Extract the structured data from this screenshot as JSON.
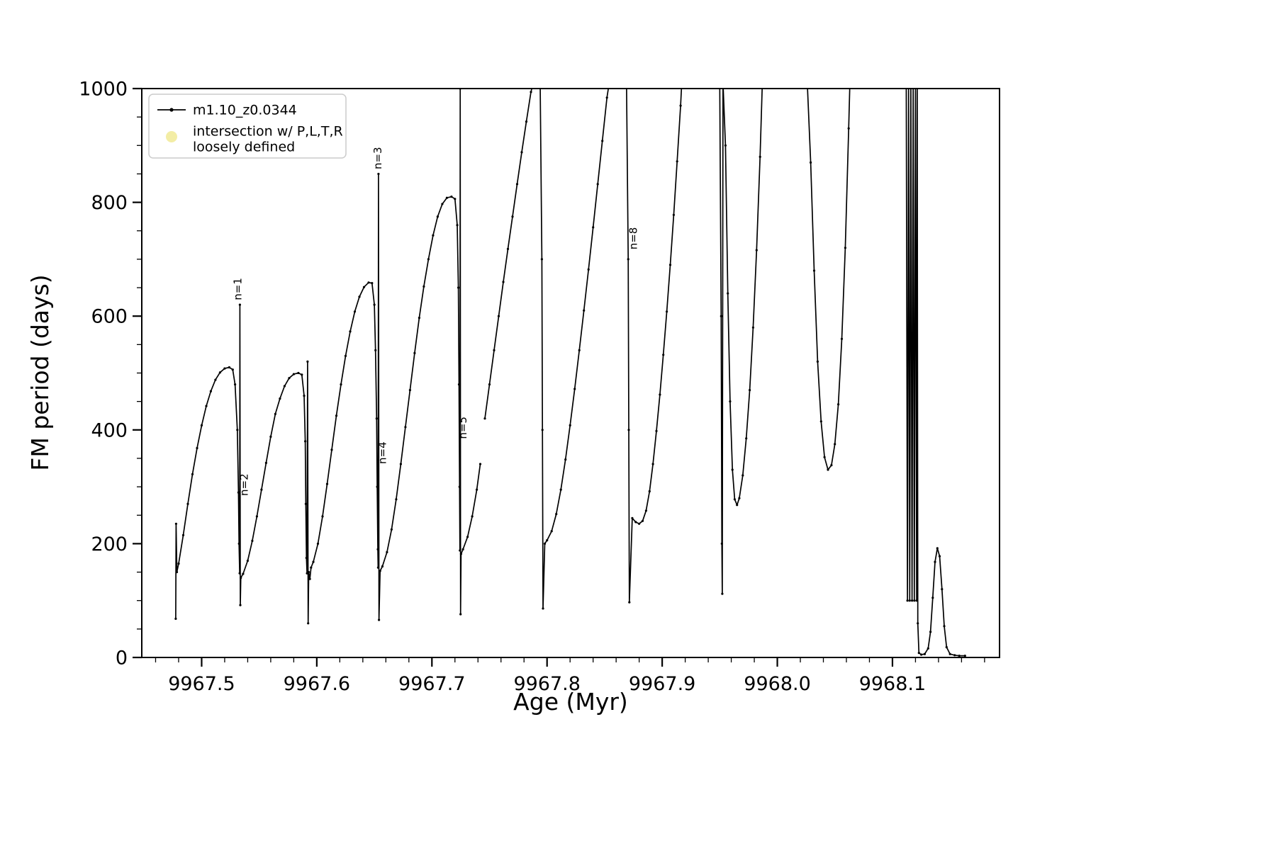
{
  "figure": {
    "background": "#ffffff"
  },
  "chart_data": {
    "type": "line",
    "title": "",
    "xlabel": "Age (Myr)",
    "ylabel": "FM period (days)",
    "xlim": [
      9967.448,
      9968.193
    ],
    "ylim": [
      0,
      1000
    ],
    "x_major_ticks": [
      9967.5,
      9967.6,
      9967.7,
      9967.8,
      9967.9,
      9968.0,
      9968.1
    ],
    "x_tick_labels": [
      "9967.5",
      "9967.6",
      "9967.7",
      "9967.8",
      "9967.9",
      "9968.0",
      "9968.1"
    ],
    "x_minor_step": 0.02,
    "y_major_ticks": [
      0,
      200,
      400,
      600,
      800,
      1000
    ],
    "y_tick_labels": [
      "0",
      "200",
      "400",
      "600",
      "800",
      "1000"
    ],
    "y_minor_step": 50,
    "grid": false,
    "axis_color": "#000000",
    "legend": {
      "position": "upper-left",
      "edge_color": "#cccccc",
      "items": [
        {
          "label_lines": [
            "m1.10_z0.0344"
          ],
          "marker": "line-dot",
          "color": "#000000"
        },
        {
          "label_lines": [
            "intersection w/ P,L,T,R",
            "loosely defined"
          ],
          "marker": "dot",
          "color": "#f3eda5"
        }
      ]
    },
    "annotations": [
      {
        "text": "n=1",
        "x": 9967.5345,
        "y": 628,
        "rotation": 90
      },
      {
        "text": "n=2",
        "x": 9967.54,
        "y": 284,
        "rotation": 90
      },
      {
        "text": "n=3",
        "x": 9967.656,
        "y": 858,
        "rotation": 90
      },
      {
        "text": "n=4",
        "x": 9967.66,
        "y": 340,
        "rotation": 90
      },
      {
        "text": "n=5",
        "x": 9967.73,
        "y": 384,
        "rotation": 90
      },
      {
        "text": "n=8",
        "x": 9967.878,
        "y": 717,
        "rotation": 90
      }
    ],
    "series": [
      {
        "name": "m1.10_z0.0344",
        "color": "#000000",
        "points": [
          [
            9967.4775,
            68
          ],
          [
            9967.4778,
            235
          ],
          [
            9967.4785,
            150
          ],
          [
            9967.48,
            165
          ],
          [
            9967.484,
            215
          ],
          [
            9967.488,
            270
          ],
          [
            9967.492,
            322
          ],
          [
            9967.496,
            368
          ],
          [
            9967.5,
            408
          ],
          [
            9967.504,
            442
          ],
          [
            9967.508,
            468
          ],
          [
            9967.512,
            488
          ],
          [
            9967.516,
            501
          ],
          [
            9967.52,
            508
          ],
          [
            9967.524,
            510
          ],
          [
            9967.527,
            506
          ],
          [
            9967.529,
            480
          ],
          [
            9967.531,
            400
          ],
          [
            9967.532,
            290
          ],
          [
            9967.5325,
            200
          ],
          [
            9967.533,
            148
          ],
          [
            9967.5332,
            620
          ],
          [
            9967.5336,
            92
          ],
          [
            9967.534,
            140
          ],
          [
            9967.536,
            147
          ],
          [
            9967.54,
            170
          ],
          [
            9967.544,
            205
          ],
          [
            9967.548,
            248
          ],
          [
            9967.552,
            295
          ],
          [
            9967.556,
            342
          ],
          [
            9967.56,
            388
          ],
          [
            9967.564,
            428
          ],
          [
            9967.568,
            455
          ],
          [
            9967.572,
            477
          ],
          [
            9967.576,
            491
          ],
          [
            9967.58,
            498
          ],
          [
            9967.584,
            500
          ],
          [
            9967.587,
            497
          ],
          [
            9967.589,
            460
          ],
          [
            9967.59,
            380
          ],
          [
            9967.5905,
            270
          ],
          [
            9967.591,
            175
          ],
          [
            9967.5915,
            148
          ],
          [
            9967.592,
            520
          ],
          [
            9967.5925,
            60
          ],
          [
            9967.593,
            150
          ],
          [
            9967.594,
            138
          ],
          [
            9967.595,
            158
          ],
          [
            9967.597,
            168
          ],
          [
            9967.601,
            200
          ],
          [
            9967.605,
            248
          ],
          [
            9967.609,
            305
          ],
          [
            9967.613,
            365
          ],
          [
            9967.617,
            425
          ],
          [
            9967.621,
            480
          ],
          [
            9967.625,
            530
          ],
          [
            9967.629,
            573
          ],
          [
            9967.633,
            608
          ],
          [
            9967.637,
            634
          ],
          [
            9967.641,
            651
          ],
          [
            9967.645,
            659
          ],
          [
            9967.648,
            658
          ],
          [
            9967.65,
            620
          ],
          [
            9967.651,
            540
          ],
          [
            9967.652,
            420
          ],
          [
            9967.6525,
            300
          ],
          [
            9967.653,
            190
          ],
          [
            9967.6533,
            158
          ],
          [
            9967.6536,
            850
          ],
          [
            9967.654,
            66
          ],
          [
            9967.655,
            152
          ],
          [
            9967.657,
            160
          ],
          [
            9967.661,
            185
          ],
          [
            9967.665,
            225
          ],
          [
            9967.669,
            278
          ],
          [
            9967.673,
            340
          ],
          [
            9967.677,
            405
          ],
          [
            9967.681,
            470
          ],
          [
            9967.685,
            535
          ],
          [
            9967.689,
            597
          ],
          [
            9967.693,
            652
          ],
          [
            9967.697,
            700
          ],
          [
            9967.701,
            742
          ],
          [
            9967.705,
            775
          ],
          [
            9967.709,
            797
          ],
          [
            9967.713,
            808
          ],
          [
            9967.717,
            810
          ],
          [
            9967.72,
            806
          ],
          [
            9967.722,
            760
          ],
          [
            9967.723,
            650
          ],
          [
            9967.7235,
            480
          ],
          [
            9967.724,
            300
          ],
          [
            9967.7243,
            188
          ],
          [
            9967.7246,
            1000
          ],
          [
            9967.7249,
            76
          ],
          [
            9967.7253,
            182
          ],
          [
            9967.727,
            190
          ],
          [
            9967.731,
            212
          ],
          [
            9967.735,
            248
          ],
          [
            9967.739,
            295
          ],
          [
            9967.742,
            340
          ],
          null,
          [
            9967.746,
            420
          ],
          [
            9967.75,
            480
          ],
          [
            9967.754,
            540
          ],
          [
            9967.758,
            600
          ],
          [
            9967.762,
            660
          ],
          [
            9967.766,
            718
          ],
          [
            9967.77,
            775
          ],
          [
            9967.774,
            832
          ],
          [
            9967.778,
            888
          ],
          [
            9967.782,
            942
          ],
          [
            9967.786,
            994
          ],
          [
            9967.788,
            1010
          ],
          [
            9967.794,
            1010
          ],
          [
            9967.7955,
            700
          ],
          [
            9967.796,
            400
          ],
          [
            9967.7965,
            86
          ],
          [
            9967.798,
            200
          ],
          [
            9967.8,
            206
          ],
          [
            9967.804,
            222
          ],
          [
            9967.808,
            252
          ],
          [
            9967.812,
            295
          ],
          [
            9967.816,
            348
          ],
          [
            9967.82,
            408
          ],
          [
            9967.824,
            472
          ],
          [
            9967.828,
            540
          ],
          [
            9967.832,
            610
          ],
          [
            9967.836,
            682
          ],
          [
            9967.84,
            756
          ],
          [
            9967.844,
            832
          ],
          [
            9967.848,
            908
          ],
          [
            9967.852,
            984
          ],
          [
            9967.854,
            1010
          ],
          [
            9967.869,
            1010
          ],
          [
            9967.8705,
            700
          ],
          [
            9967.871,
            400
          ],
          [
            9967.8715,
            97
          ],
          [
            9967.874,
            245
          ],
          [
            9967.877,
            238
          ],
          [
            9967.88,
            235
          ],
          [
            9967.883,
            240
          ],
          [
            9967.886,
            258
          ],
          [
            9967.889,
            292
          ],
          [
            9967.892,
            340
          ],
          [
            9967.895,
            398
          ],
          [
            9967.898,
            462
          ],
          [
            9967.901,
            532
          ],
          [
            9967.904,
            608
          ],
          [
            9967.907,
            690
          ],
          [
            9967.91,
            778
          ],
          [
            9967.913,
            872
          ],
          [
            9967.916,
            970
          ],
          [
            9967.917,
            1010
          ],
          [
            9967.95,
            1010
          ],
          [
            9967.9512,
            600
          ],
          [
            9967.9518,
            200
          ],
          [
            9967.9522,
            112
          ],
          [
            9967.9528,
            1010
          ],
          [
            9967.955,
            900
          ],
          [
            9967.957,
            640
          ],
          [
            9967.959,
            450
          ],
          [
            9967.961,
            330
          ],
          [
            9967.963,
            278
          ],
          [
            9967.965,
            268
          ],
          [
            9967.967,
            280
          ],
          [
            9967.97,
            320
          ],
          [
            9967.973,
            385
          ],
          [
            9967.976,
            470
          ],
          [
            9967.979,
            580
          ],
          [
            9967.982,
            716
          ],
          [
            9967.985,
            880
          ],
          [
            9967.987,
            1010
          ],
          [
            9968.026,
            1010
          ],
          [
            9968.029,
            870
          ],
          [
            9968.032,
            680
          ],
          [
            9968.035,
            520
          ],
          [
            9968.038,
            415
          ],
          [
            9968.041,
            352
          ],
          [
            9968.044,
            330
          ],
          [
            9968.047,
            338
          ],
          [
            9968.05,
            375
          ],
          [
            9968.053,
            445
          ],
          [
            9968.056,
            560
          ],
          [
            9968.059,
            720
          ],
          [
            9968.062,
            930
          ],
          [
            9968.063,
            1010
          ],
          [
            9968.112,
            1010
          ],
          [
            9968.113,
            100
          ],
          [
            9968.114,
            1010
          ],
          [
            9968.115,
            100
          ],
          [
            9968.116,
            1010
          ],
          [
            9968.117,
            100
          ],
          [
            9968.118,
            1010
          ],
          [
            9968.119,
            100
          ],
          [
            9968.12,
            1010
          ],
          [
            9968.121,
            100
          ],
          [
            9968.1215,
            1010
          ],
          [
            9968.122,
            60
          ],
          [
            9968.123,
            8
          ],
          [
            9968.125,
            5
          ],
          [
            9968.128,
            6
          ],
          [
            9968.131,
            16
          ],
          [
            9968.133,
            45
          ],
          [
            9968.135,
            105
          ],
          [
            9968.137,
            168
          ],
          [
            9968.139,
            192
          ],
          [
            9968.141,
            178
          ],
          [
            9968.143,
            120
          ],
          [
            9968.145,
            55
          ],
          [
            9968.147,
            18
          ],
          [
            9968.15,
            6
          ],
          [
            9968.154,
            4
          ],
          [
            9968.158,
            3
          ],
          [
            9968.163,
            3
          ]
        ]
      }
    ]
  }
}
